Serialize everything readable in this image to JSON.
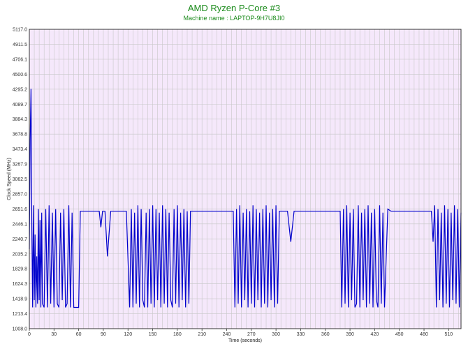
{
  "chart_data": {
    "type": "line",
    "title": "AMD Ryzen P-Core #3",
    "subtitle": "Machine name : LAPTOP-9H7U8JI0",
    "xlabel": "Time (seconds)",
    "ylabel": "Clock Speed (MHz)",
    "xlim": [
      0,
      525
    ],
    "ylim": [
      1008.0,
      5117.0
    ],
    "x_ticks": [
      0,
      30,
      60,
      90,
      120,
      150,
      180,
      210,
      240,
      270,
      300,
      330,
      360,
      390,
      420,
      450,
      480,
      510
    ],
    "y_ticks": [
      1008.0,
      1213.4,
      1418.9,
      1624.3,
      1829.8,
      2035.2,
      2240.7,
      2446.1,
      2651.6,
      2857.0,
      3062.5,
      3267.9,
      3473.4,
      3678.8,
      3884.3,
      4089.7,
      4295.2,
      4500.6,
      4706.1,
      4911.5,
      5117.0
    ],
    "grid": true,
    "colors": {
      "plot_background": "#f5e8fb",
      "grid": "#c8c8c8",
      "line": "#0000cc",
      "title": "#1a8a1a"
    },
    "series": [
      {
        "x": [
          0,
          1,
          2,
          3,
          4,
          5,
          6,
          7,
          8,
          9,
          10,
          11,
          12,
          13,
          14,
          15,
          16,
          18,
          20,
          22,
          24,
          26,
          28,
          30,
          32,
          34,
          36,
          38,
          40,
          42,
          44,
          46,
          48,
          50,
          52,
          54,
          56,
          58,
          60,
          62,
          64,
          66,
          70,
          75,
          80,
          85,
          87,
          89,
          92,
          95,
          99,
          103,
          106,
          110,
          114,
          118,
          122,
          124,
          126,
          128,
          130,
          132,
          134,
          136,
          138,
          140,
          142,
          144,
          146,
          148,
          150,
          152,
          154,
          156,
          158,
          160,
          162,
          164,
          166,
          168,
          170,
          172,
          174,
          176,
          178,
          180,
          182,
          184,
          186,
          188,
          190,
          192,
          194,
          196,
          200,
          205,
          210,
          215,
          220,
          225,
          230,
          235,
          240,
          245,
          248,
          250,
          252,
          254,
          256,
          258,
          260,
          262,
          264,
          266,
          268,
          270,
          272,
          274,
          276,
          278,
          280,
          282,
          284,
          286,
          288,
          290,
          292,
          294,
          296,
          298,
          300,
          302,
          304,
          306,
          308,
          310,
          314,
          318,
          322,
          326,
          330,
          334,
          338,
          342,
          346,
          350,
          355,
          360,
          365,
          370,
          374,
          376,
          378,
          380,
          382,
          384,
          386,
          388,
          390,
          392,
          394,
          396,
          398,
          400,
          402,
          404,
          406,
          408,
          410,
          412,
          414,
          416,
          418,
          420,
          422,
          424,
          426,
          428,
          430,
          432,
          436,
          440,
          444,
          448,
          452,
          456,
          460,
          465,
          470,
          475,
          480,
          485,
          487,
          489,
          491,
          493,
          495,
          497,
          499,
          501,
          503,
          505,
          507,
          509,
          511,
          513,
          515,
          517,
          519,
          521,
          523,
          525
        ],
        "y": [
          2100,
          3600,
          4300,
          2500,
          1300,
          2700,
          1400,
          2300,
          1300,
          2000,
          1350,
          2650,
          1400,
          2500,
          1300,
          2600,
          1350,
          1300,
          2650,
          1300,
          2700,
          1350,
          2600,
          1300,
          2650,
          1350,
          1300,
          2600,
          1400,
          2650,
          1300,
          1350,
          2700,
          1300,
          2600,
          1300,
          1300,
          1300,
          1300,
          2620,
          2620,
          2620,
          2620,
          2620,
          2620,
          2620,
          2400,
          2620,
          2620,
          2000,
          2620,
          2620,
          2620,
          2620,
          2620,
          2620,
          1300,
          2650,
          1300,
          2600,
          1350,
          2700,
          1300,
          2650,
          1400,
          1300,
          2600,
          1300,
          2650,
          1350,
          2700,
          1300,
          2650,
          1400,
          2600,
          1300,
          2700,
          1350,
          2650,
          1300,
          2600,
          1400,
          1300,
          2650,
          1350,
          2700,
          1300,
          2600,
          1400,
          2650,
          1300,
          2620,
          1350,
          2620,
          2620,
          2620,
          2620,
          2620,
          2620,
          2620,
          2620,
          2620,
          2620,
          2620,
          2620,
          1300,
          2650,
          1350,
          2700,
          1300,
          2600,
          1400,
          2650,
          1300,
          2620,
          1350,
          2700,
          1300,
          2650,
          1400,
          2600,
          1300,
          2650,
          1350,
          2700,
          1300,
          2600,
          1400,
          2650,
          1300,
          2700,
          1350,
          2620,
          2620,
          2620,
          2620,
          2620,
          2200,
          2620,
          2620,
          2620,
          2620,
          2620,
          2620,
          2620,
          2620,
          2620,
          2620,
          2620,
          2620,
          2620,
          2620,
          2620,
          1300,
          2650,
          1350,
          2700,
          1300,
          2600,
          1400,
          2650,
          1300,
          1350,
          2700,
          1300,
          2600,
          1400,
          2650,
          1300,
          2700,
          1350,
          2600,
          1300,
          2650,
          1400,
          1300,
          2700,
          1350,
          2600,
          1300,
          2650,
          2620,
          2620,
          2620,
          2620,
          2620,
          2620,
          2620,
          2620,
          2620,
          2620,
          2620,
          2620,
          2620,
          2200,
          2700,
          1300,
          2650,
          1400,
          2600,
          1300,
          2700,
          1350,
          2650,
          1300,
          2600,
          1400,
          2700,
          1350,
          2650,
          1300,
          2600
        ]
      }
    ]
  }
}
